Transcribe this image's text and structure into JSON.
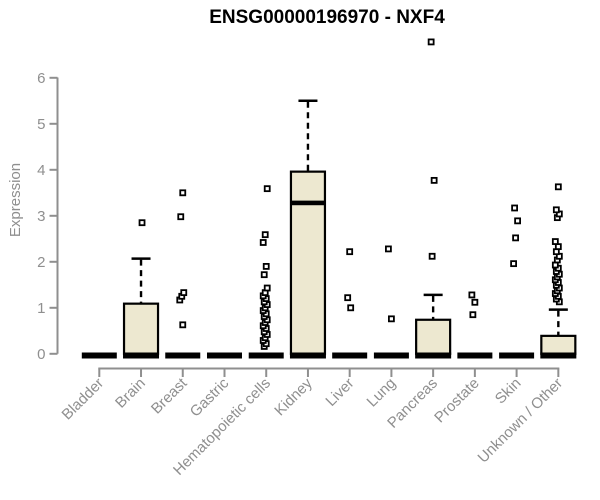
{
  "chart_data": {
    "type": "boxplot",
    "title": "ENSG00000196970 - NXF4",
    "ylabel": "Expression",
    "ylim": [
      0,
      6
    ],
    "yticks": [
      0,
      1,
      2,
      3,
      4,
      5,
      6
    ],
    "grid": false,
    "legend": false,
    "colors": {
      "box_fill": "#ede8d0",
      "box_border": "#000000",
      "median": "#000000",
      "axis": "#8f8f8f",
      "tick_label": "#8f8f8f",
      "title": "#000000",
      "outlier_stroke": "#000000",
      "outlier_fill": "#ffffff"
    },
    "categories": [
      "Bladder",
      "Brain",
      "Breast",
      "Gastric",
      "Hematopoietic cells",
      "Kidney",
      "Liver",
      "Lung",
      "Pancreas",
      "Prostate",
      "Skin",
      "Unknown / Other"
    ],
    "boxes": [
      {
        "category": "Bladder",
        "q1": 0,
        "median": 0,
        "q3": 0,
        "whisker_low": 0,
        "whisker_high": 0,
        "outliers": []
      },
      {
        "category": "Brain",
        "q1": 0,
        "median": 0,
        "q3": 1.09,
        "whisker_low": 0,
        "whisker_high": 2.07,
        "outliers": [
          2.85
        ]
      },
      {
        "category": "Breast",
        "q1": 0,
        "median": 0,
        "q3": 0,
        "whisker_low": 0,
        "whisker_high": 0,
        "outliers": [
          0.63,
          1.17,
          1.25,
          1.33,
          2.98,
          3.5
        ]
      },
      {
        "category": "Gastric",
        "q1": 0,
        "median": 0,
        "q3": 0,
        "whisker_low": 0,
        "whisker_high": 0,
        "outliers": []
      },
      {
        "category": "Hematopoietic cells",
        "q1": 0,
        "median": 0,
        "q3": 0,
        "whisker_low": 0,
        "whisker_high": 0,
        "outliers": [
          0.16,
          0.22,
          0.29,
          0.35,
          0.42,
          0.48,
          0.55,
          0.61,
          0.68,
          0.74,
          0.81,
          0.87,
          0.94,
          1.0,
          1.07,
          1.13,
          1.2,
          1.26,
          1.33,
          1.43,
          1.72,
          1.9,
          2.42,
          2.59,
          3.59
        ]
      },
      {
        "category": "Kidney",
        "q1": 0,
        "median": 3.28,
        "q3": 3.96,
        "whisker_low": 0,
        "whisker_high": 5.5,
        "outliers": []
      },
      {
        "category": "Liver",
        "q1": 0,
        "median": 0,
        "q3": 0,
        "whisker_low": 0,
        "whisker_high": 0,
        "outliers": [
          1.0,
          1.22,
          2.22
        ]
      },
      {
        "category": "Lung",
        "q1": 0,
        "median": 0,
        "q3": 0,
        "whisker_low": 0,
        "whisker_high": 0,
        "outliers": [
          0.76,
          2.28
        ]
      },
      {
        "category": "Pancreas",
        "q1": 0,
        "median": 0,
        "q3": 0.74,
        "whisker_low": 0,
        "whisker_high": 1.28,
        "outliers": [
          2.12,
          3.77,
          6.78
        ]
      },
      {
        "category": "Prostate",
        "q1": 0,
        "median": 0,
        "q3": 0,
        "whisker_low": 0,
        "whisker_high": 0,
        "outliers": [
          0.85,
          1.12,
          1.28
        ]
      },
      {
        "category": "Skin",
        "q1": 0,
        "median": 0,
        "q3": 0,
        "whisker_low": 0,
        "whisker_high": 0,
        "outliers": [
          1.96,
          2.52,
          2.89,
          3.17
        ]
      },
      {
        "category": "Unknown / Other",
        "q1": 0,
        "median": 0,
        "q3": 0.39,
        "whisker_low": 0,
        "whisker_high": 0.96,
        "outliers": [
          1.13,
          1.19,
          1.25,
          1.31,
          1.37,
          1.43,
          1.49,
          1.55,
          1.61,
          1.67,
          1.73,
          1.79,
          1.86,
          1.93,
          2.04,
          2.12,
          2.22,
          2.33,
          2.44,
          2.96,
          3.04,
          3.13,
          3.63
        ]
      }
    ]
  }
}
